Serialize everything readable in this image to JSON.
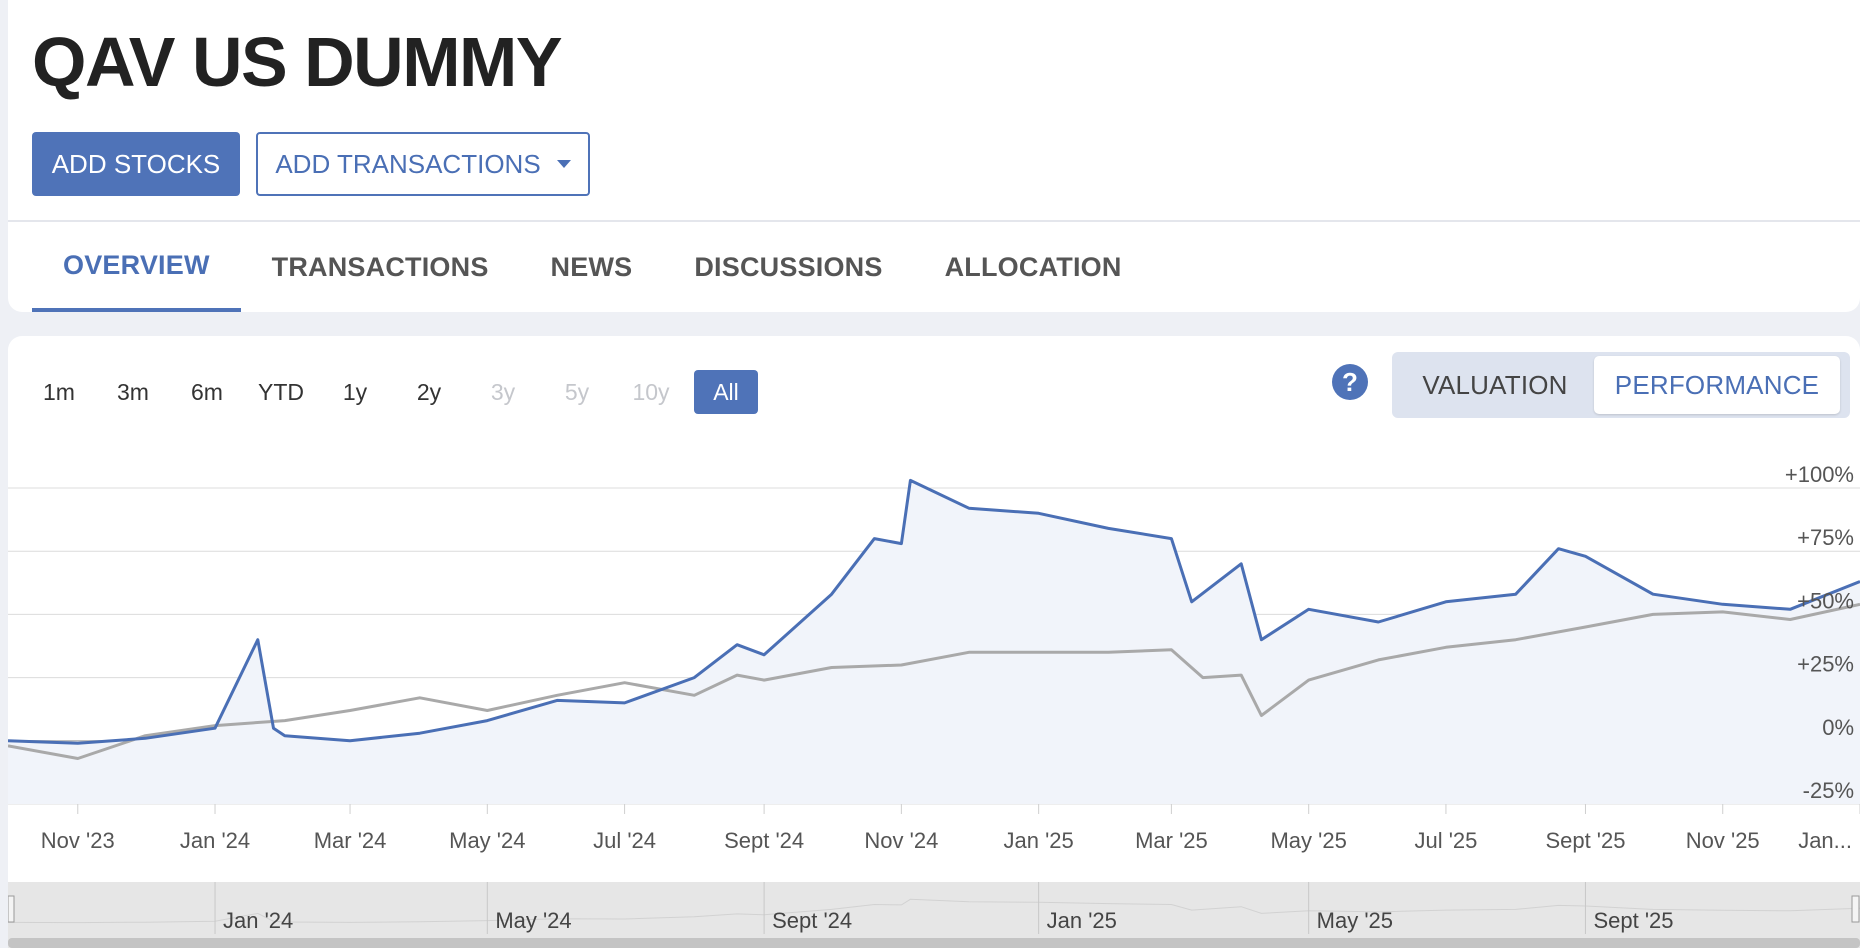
{
  "header": {
    "title": "QAV US DUMMY",
    "add_stocks_label": "ADD STOCKS",
    "add_transactions_label": "ADD TRANSACTIONS"
  },
  "tabs": [
    {
      "label": "OVERVIEW",
      "active": true
    },
    {
      "label": "TRANSACTIONS",
      "active": false
    },
    {
      "label": "NEWS",
      "active": false
    },
    {
      "label": "DISCUSSIONS",
      "active": false
    },
    {
      "label": "ALLOCATION",
      "active": false
    }
  ],
  "ranges": [
    {
      "label": "1m",
      "state": "enabled"
    },
    {
      "label": "3m",
      "state": "enabled"
    },
    {
      "label": "6m",
      "state": "enabled"
    },
    {
      "label": "YTD",
      "state": "enabled"
    },
    {
      "label": "1y",
      "state": "enabled"
    },
    {
      "label": "2y",
      "state": "enabled"
    },
    {
      "label": "3y",
      "state": "disabled"
    },
    {
      "label": "5y",
      "state": "disabled"
    },
    {
      "label": "10y",
      "state": "disabled"
    },
    {
      "label": "All",
      "state": "active"
    }
  ],
  "help_icon": {
    "glyph": "?",
    "icon": "question-circle-icon"
  },
  "view_toggle": {
    "valuation_label": "VALUATION",
    "performance_label": "PERFORMANCE",
    "selected": "PERFORMANCE"
  },
  "colors": {
    "accent": "#4f73b8",
    "portfolio_line": "#4a6fb5",
    "benchmark_line": "#a9a9a9",
    "area_fill": "#f1f4fa"
  },
  "chart_data": {
    "type": "line",
    "x_start": "2023-10",
    "x_end": "2026-01",
    "ylim": [
      -25,
      100
    ],
    "y_ticks": [
      "+100%",
      "+75%",
      "+50%",
      "+25%",
      "0%",
      "-25%"
    ],
    "y_tick_values": [
      100,
      75,
      50,
      25,
      0,
      -25
    ],
    "x_ticks": [
      "Nov '23",
      "Jan '24",
      "Mar '24",
      "May '24",
      "Jul '24",
      "Sept '24",
      "Nov '24",
      "Jan '25",
      "Mar '25",
      "May '25",
      "Jul '25",
      "Sept '25",
      "Nov '25",
      "Jan..."
    ],
    "x_tick_dates": [
      "2023-11",
      "2024-01",
      "2024-03",
      "2024-05",
      "2024-07",
      "2024-09",
      "2024-11",
      "2025-01",
      "2025-03",
      "2025-05",
      "2025-07",
      "2025-09",
      "2025-11",
      "2026-01"
    ],
    "series": [
      {
        "x": [
          "2023-10",
          "2023-11",
          "2023-12",
          "2024-01",
          "2024-01-20",
          "2024-01-27",
          "2024-02",
          "2024-03",
          "2024-04",
          "2024-05",
          "2024-06",
          "2024-07",
          "2024-08",
          "2024-08-20",
          "2024-09",
          "2024-10",
          "2024-10-20",
          "2024-11",
          "2024-11-05",
          "2024-12",
          "2025-01",
          "2025-02",
          "2025-03",
          "2025-03-10",
          "2025-04",
          "2025-04-10",
          "2025-05",
          "2025-06",
          "2025-07",
          "2025-08",
          "2025-08-20",
          "2025-09",
          "2025-10",
          "2025-11",
          "2025-12",
          "2026-01"
        ],
        "values": [
          0,
          -1,
          1,
          5,
          40,
          5,
          2,
          0,
          3,
          8,
          16,
          15,
          25,
          38,
          34,
          58,
          80,
          78,
          103,
          92,
          90,
          84,
          80,
          55,
          70,
          40,
          52,
          47,
          55,
          58,
          76,
          73,
          58,
          54,
          52,
          63
        ]
      },
      {
        "x": [
          "2023-10",
          "2023-11",
          "2023-12",
          "2024-01",
          "2024-02",
          "2024-03",
          "2024-04",
          "2024-05",
          "2024-06",
          "2024-07",
          "2024-08",
          "2024-08-20",
          "2024-09",
          "2024-10",
          "2024-11",
          "2024-12",
          "2025-01",
          "2025-02",
          "2025-03",
          "2025-03-15",
          "2025-04",
          "2025-04-10",
          "2025-05",
          "2025-06",
          "2025-07",
          "2025-08",
          "2025-09",
          "2025-10",
          "2025-11",
          "2025-12",
          "2026-01"
        ],
        "values": [
          -2,
          -7,
          2,
          6,
          8,
          12,
          17,
          12,
          18,
          23,
          18,
          26,
          24,
          29,
          30,
          35,
          35,
          35,
          36,
          25,
          26,
          10,
          24,
          32,
          37,
          40,
          45,
          50,
          51,
          48,
          54
        ]
      }
    ],
    "navigator_ticks": [
      "Jan '24",
      "May '24",
      "Sept '24",
      "Jan '25",
      "May '25",
      "Sept '25"
    ],
    "navigator_tick_dates": [
      "2024-01",
      "2024-05",
      "2024-09",
      "2025-01",
      "2025-05",
      "2025-09"
    ]
  }
}
